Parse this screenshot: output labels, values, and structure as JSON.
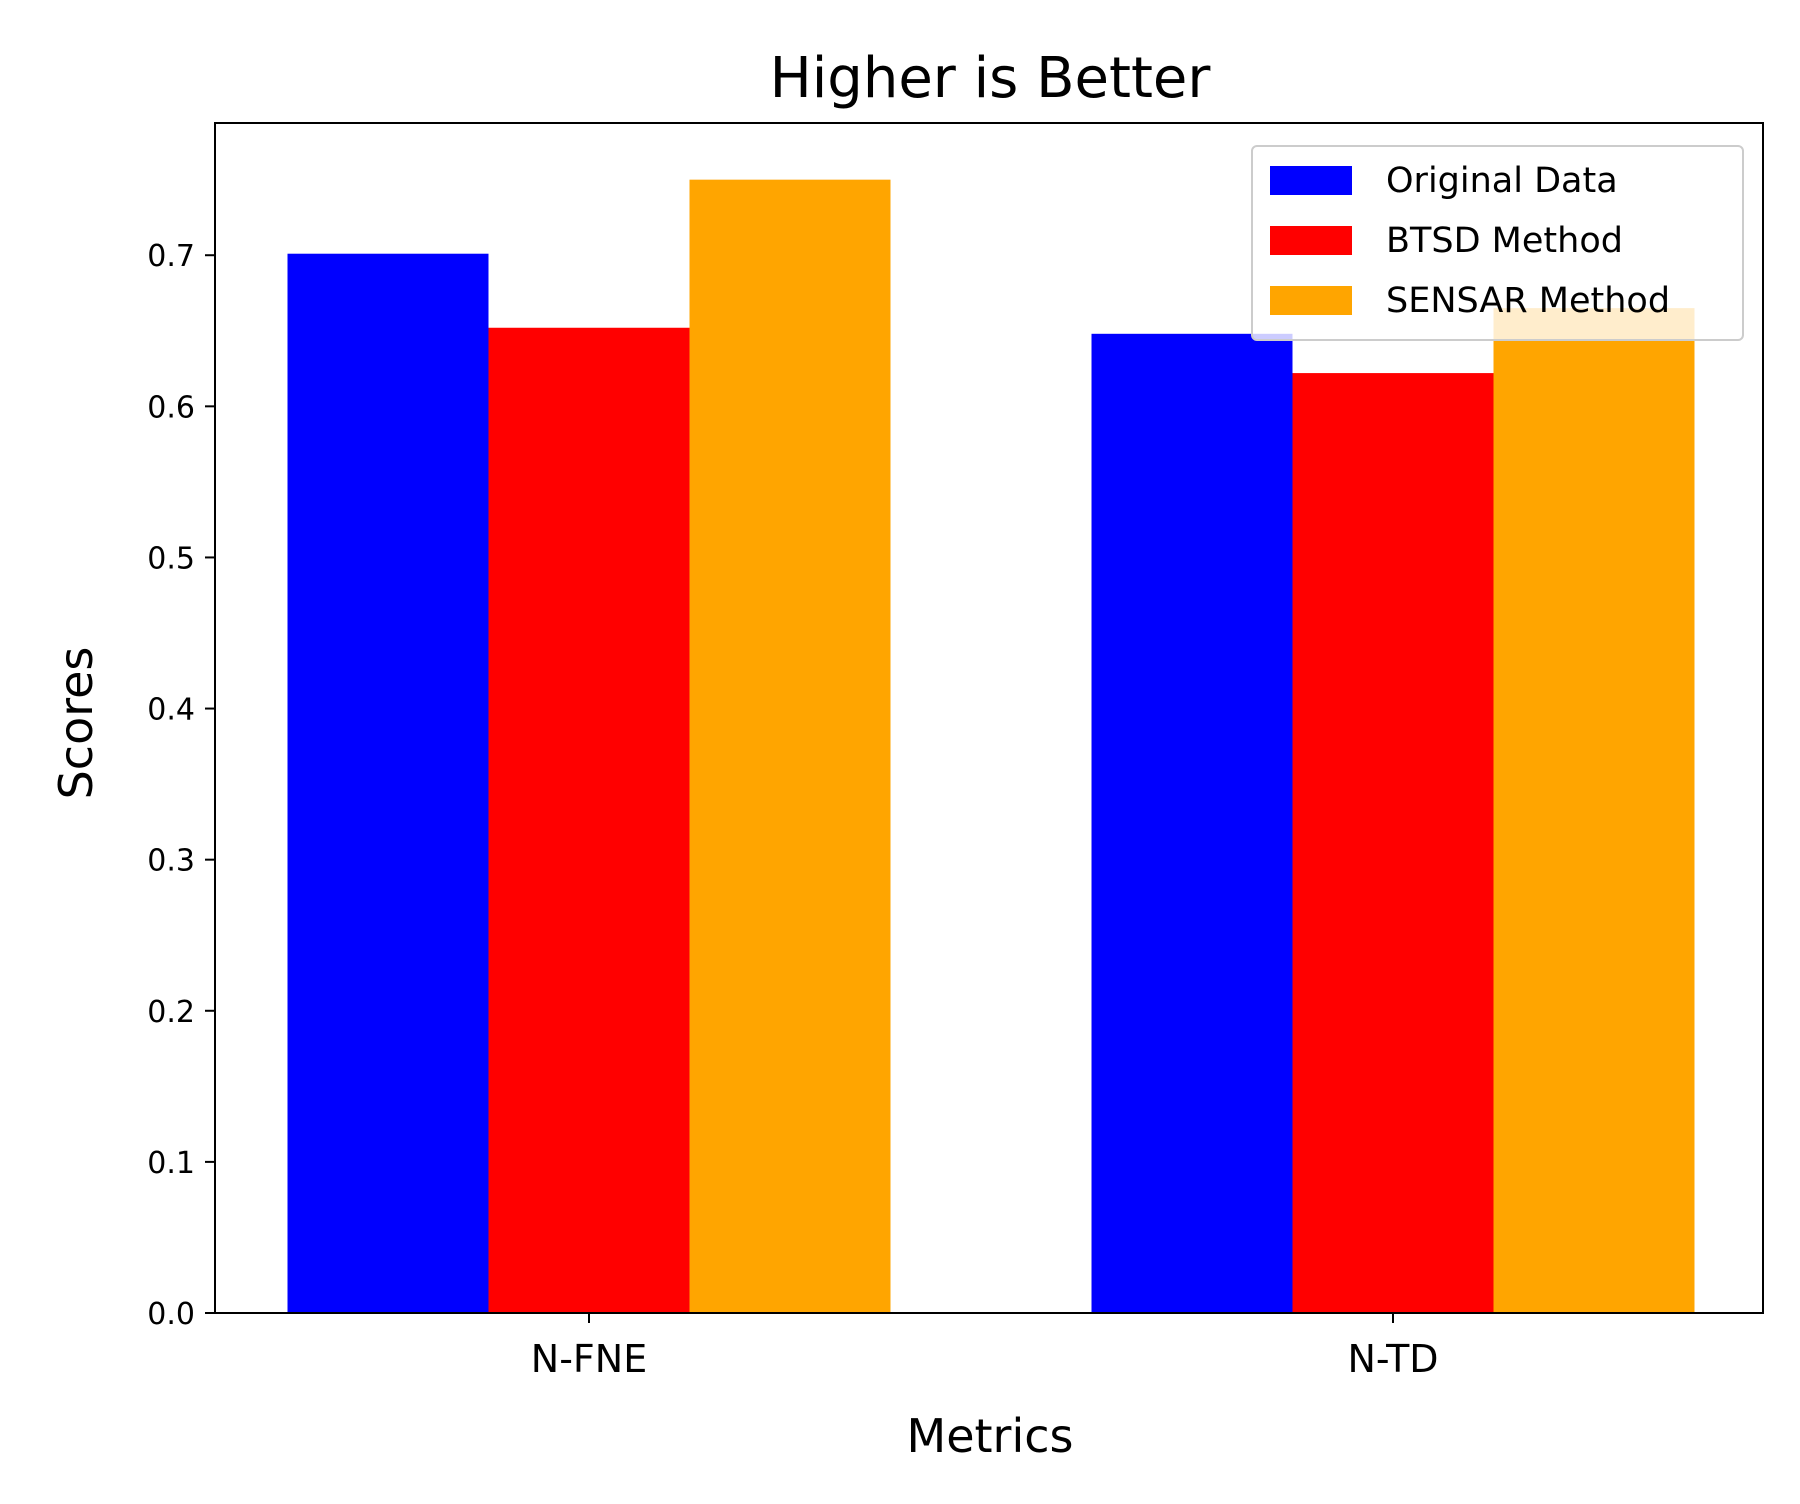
{
  "chart_data": {
    "type": "bar",
    "title": "Higher is Better",
    "xlabel": "Metrics",
    "ylabel": "Scores",
    "categories": [
      "N-FNE",
      "N-TD"
    ],
    "series": [
      {
        "name": "Original Data",
        "color": "#0000ff",
        "values": [
          0.701,
          0.648
        ]
      },
      {
        "name": "BTSD Method",
        "color": "#ff0000",
        "values": [
          0.652,
          0.622
        ]
      },
      {
        "name": "SENSAR Method",
        "color": "#ffa500",
        "values": [
          0.75,
          0.665
        ]
      }
    ],
    "ylim": [
      0,
      0.7875
    ],
    "yticks": [
      "0.0",
      "0.1",
      "0.2",
      "0.3",
      "0.4",
      "0.5",
      "0.6",
      "0.7"
    ],
    "legend": "top-right",
    "grid": false
  }
}
